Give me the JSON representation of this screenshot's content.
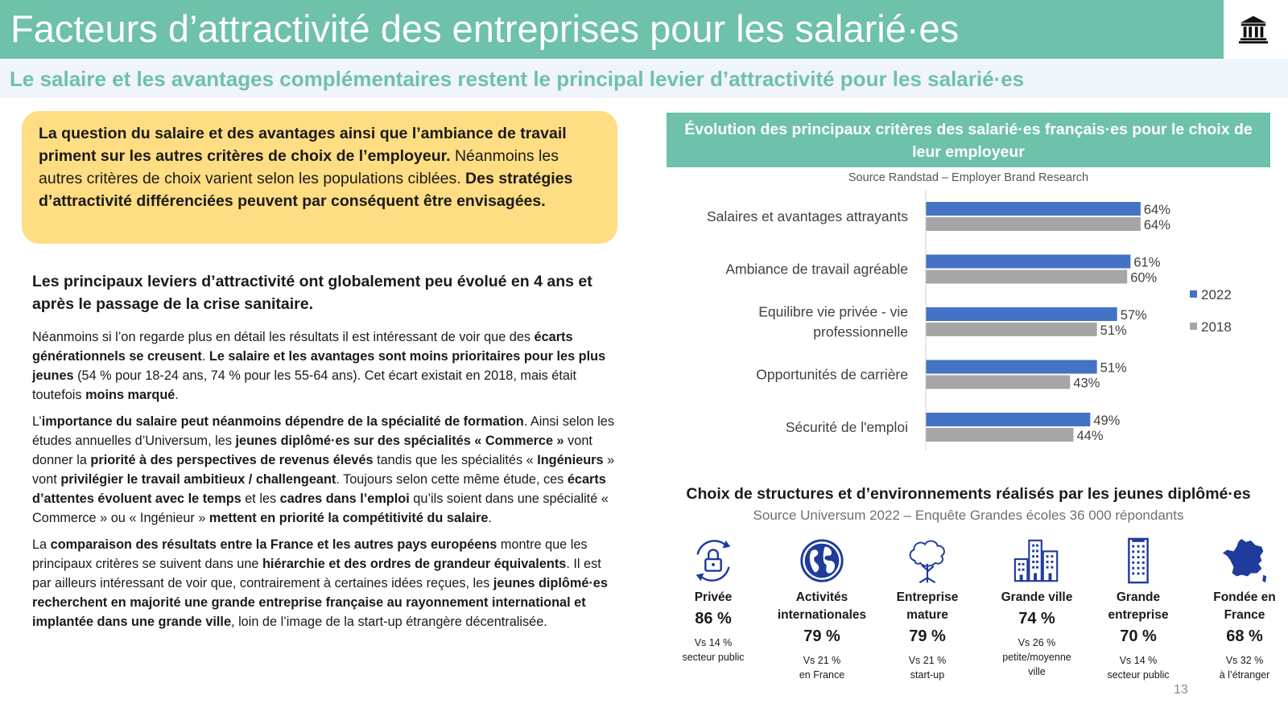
{
  "header": {
    "title": "Facteurs d’attractivité des entreprises pour les salarié·es",
    "logo_icon": "institution-building-icon"
  },
  "subtitle": "Le salaire et les avantages complémentaires restent le principal levier d’attractivité pour les salarié·es",
  "callout": {
    "bold1": "La question du salaire et des avantages ainsi que l’ambiance de travail priment sur les autres critères de choix de l’employeur.",
    "normal1": " Néanmoins les autres critères de choix varient selon les populations ciblées. ",
    "bold2": "Des stratégies d’attractivité différenciées peuvent par conséquent être envisagées."
  },
  "body": {
    "lead": "Les principaux leviers d’attractivité ont globalement peu évolué en 4 ans et après le passage de la crise sanitaire.",
    "p1": {
      "s1": "Néanmoins si l’on regarde plus en détail les résultats il est intéressant de voir que des ",
      "b1": "écarts générationnels se creusent",
      "s2": ". ",
      "b2": "Le salaire et les avantages sont moins prioritaires pour les plus jeunes",
      "s3": " (54 % pour 18-24 ans, 74 % pour les 55-64 ans). Cet écart existait en 2018, mais était toutefois ",
      "b3": "moins marqué",
      "s4": "."
    },
    "p2": {
      "s1": "L’",
      "b1": "importance du salaire peut néanmoins dépendre de la spécialité de formation",
      "s2": ". Ainsi selon les études annuelles d’Universum, les ",
      "b2": "jeunes diplômé·es sur des spécialités « Commerce »",
      "s3": " vont donner la ",
      "b3": "priorité à des perspectives de revenus élevés",
      "s4": " tandis que les spécialités « ",
      "b4": "Ingénieurs",
      "s5": " » vont ",
      "b5": "privilégier le travail ambitieux / challengeant",
      "s6": ". Toujours selon cette même étude, ces ",
      "b6": "écarts d’attentes évoluent avec le temps",
      "s7": " et les ",
      "b7": "cadres dans l’emploi",
      "s8": " qu’ils soient dans une spécialité « Commerce » ou « Ingénieur » ",
      "b8": "mettent en priorité la compétitivité du salaire",
      "s9": "."
    },
    "p3": {
      "s1": "La ",
      "b1": "comparaison des résultats entre la France et les autres pays européens",
      "s2": " montre que les principaux critères se suivent dans une ",
      "b2": "hiérarchie et des ordres de grandeur équivalents",
      "s3": ". Il est par ailleurs intéressant de voir que, contrairement à certaines idées reçues, les ",
      "b3": "jeunes diplômé·es recherchent en majorité une grande entreprise française au rayonnement international et implantée dans une grande ville",
      "s4": ", loin de l’image de la start-up étrangère décentralisée."
    }
  },
  "chart": {
    "title": "Évolution des principaux critères des salarié·es français·es pour le choix de leur employeur",
    "source": "Source Randstad – Employer Brand Research"
  },
  "chart_data": {
    "type": "bar",
    "orientation": "horizontal",
    "categories": [
      "Salaires et avantages attrayants",
      "Ambiance de travail agréable",
      "Equilibre vie privée - vie professionnelle",
      "Opportunités de carrière",
      "Sécurité de l'emploi"
    ],
    "category_lines": [
      [
        "Salaires et avantages attrayants"
      ],
      [
        "Ambiance de travail agréable"
      ],
      [
        "Equilibre vie privée - vie",
        "professionnelle"
      ],
      [
        "Opportunités de carrière"
      ],
      [
        "Sécurité de l'emploi"
      ]
    ],
    "series": [
      {
        "name": "2022",
        "color": "#4472c4",
        "values": [
          64,
          61,
          57,
          51,
          49
        ],
        "labels": [
          "64%",
          "61%",
          "57%",
          "51%",
          "49%"
        ]
      },
      {
        "name": "2018",
        "color": "#a5a5a5",
        "values": [
          64,
          60,
          51,
          43,
          44
        ],
        "labels": [
          "64%",
          "60%",
          "51%",
          "43%",
          "44%"
        ]
      }
    ],
    "xlim": [
      0,
      100
    ],
    "legend_position": "right",
    "grid": false
  },
  "section2": {
    "title": "Choix de structures et d’environnements réalisés par les jeunes diplômé·es",
    "source": "Source Universum 2022 – Enquête Grandes écoles 36 000 répondants",
    "items": [
      {
        "icon": "lock-cycle-icon",
        "label_lines": [
          "Privée"
        ],
        "pct": "86 %",
        "cmp_lines": [
          "Vs 14 %",
          "secteur public"
        ]
      },
      {
        "icon": "globe-icon",
        "label_lines": [
          "Activités",
          "internationales"
        ],
        "pct": "79 %",
        "cmp_lines": [
          "Vs 21 %",
          "en France"
        ]
      },
      {
        "icon": "tree-icon",
        "label_lines": [
          "Entreprise",
          "mature"
        ],
        "pct": "79 %",
        "cmp_lines": [
          "Vs 21 %",
          "start-up"
        ]
      },
      {
        "icon": "city-buildings-icon",
        "label_lines": [
          "Grande ville"
        ],
        "pct": "74 %",
        "cmp_lines": [
          "Vs 26 %",
          "petite/moyenne",
          "ville"
        ]
      },
      {
        "icon": "office-tower-icon",
        "label_lines": [
          "Grande",
          "entreprise"
        ],
        "pct": "70 %",
        "cmp_lines": [
          "Vs 14 %",
          "secteur public"
        ]
      },
      {
        "icon": "france-map-icon",
        "label_lines": [
          "Fondée en",
          "France"
        ],
        "pct": "68 %",
        "cmp_lines": [
          "Vs 32 %",
          "à l’étranger"
        ]
      }
    ]
  },
  "page_number": "13",
  "colors": {
    "header_bg": "#6ec1aa",
    "subtitle_text": "#6ec1aa",
    "subtitle_band": "#f0f4fb",
    "callout_bg": "#ffdd82",
    "series_2022": "#4472c4",
    "series_2018": "#a5a5a5",
    "icon_blue": "#1f3b9c"
  }
}
